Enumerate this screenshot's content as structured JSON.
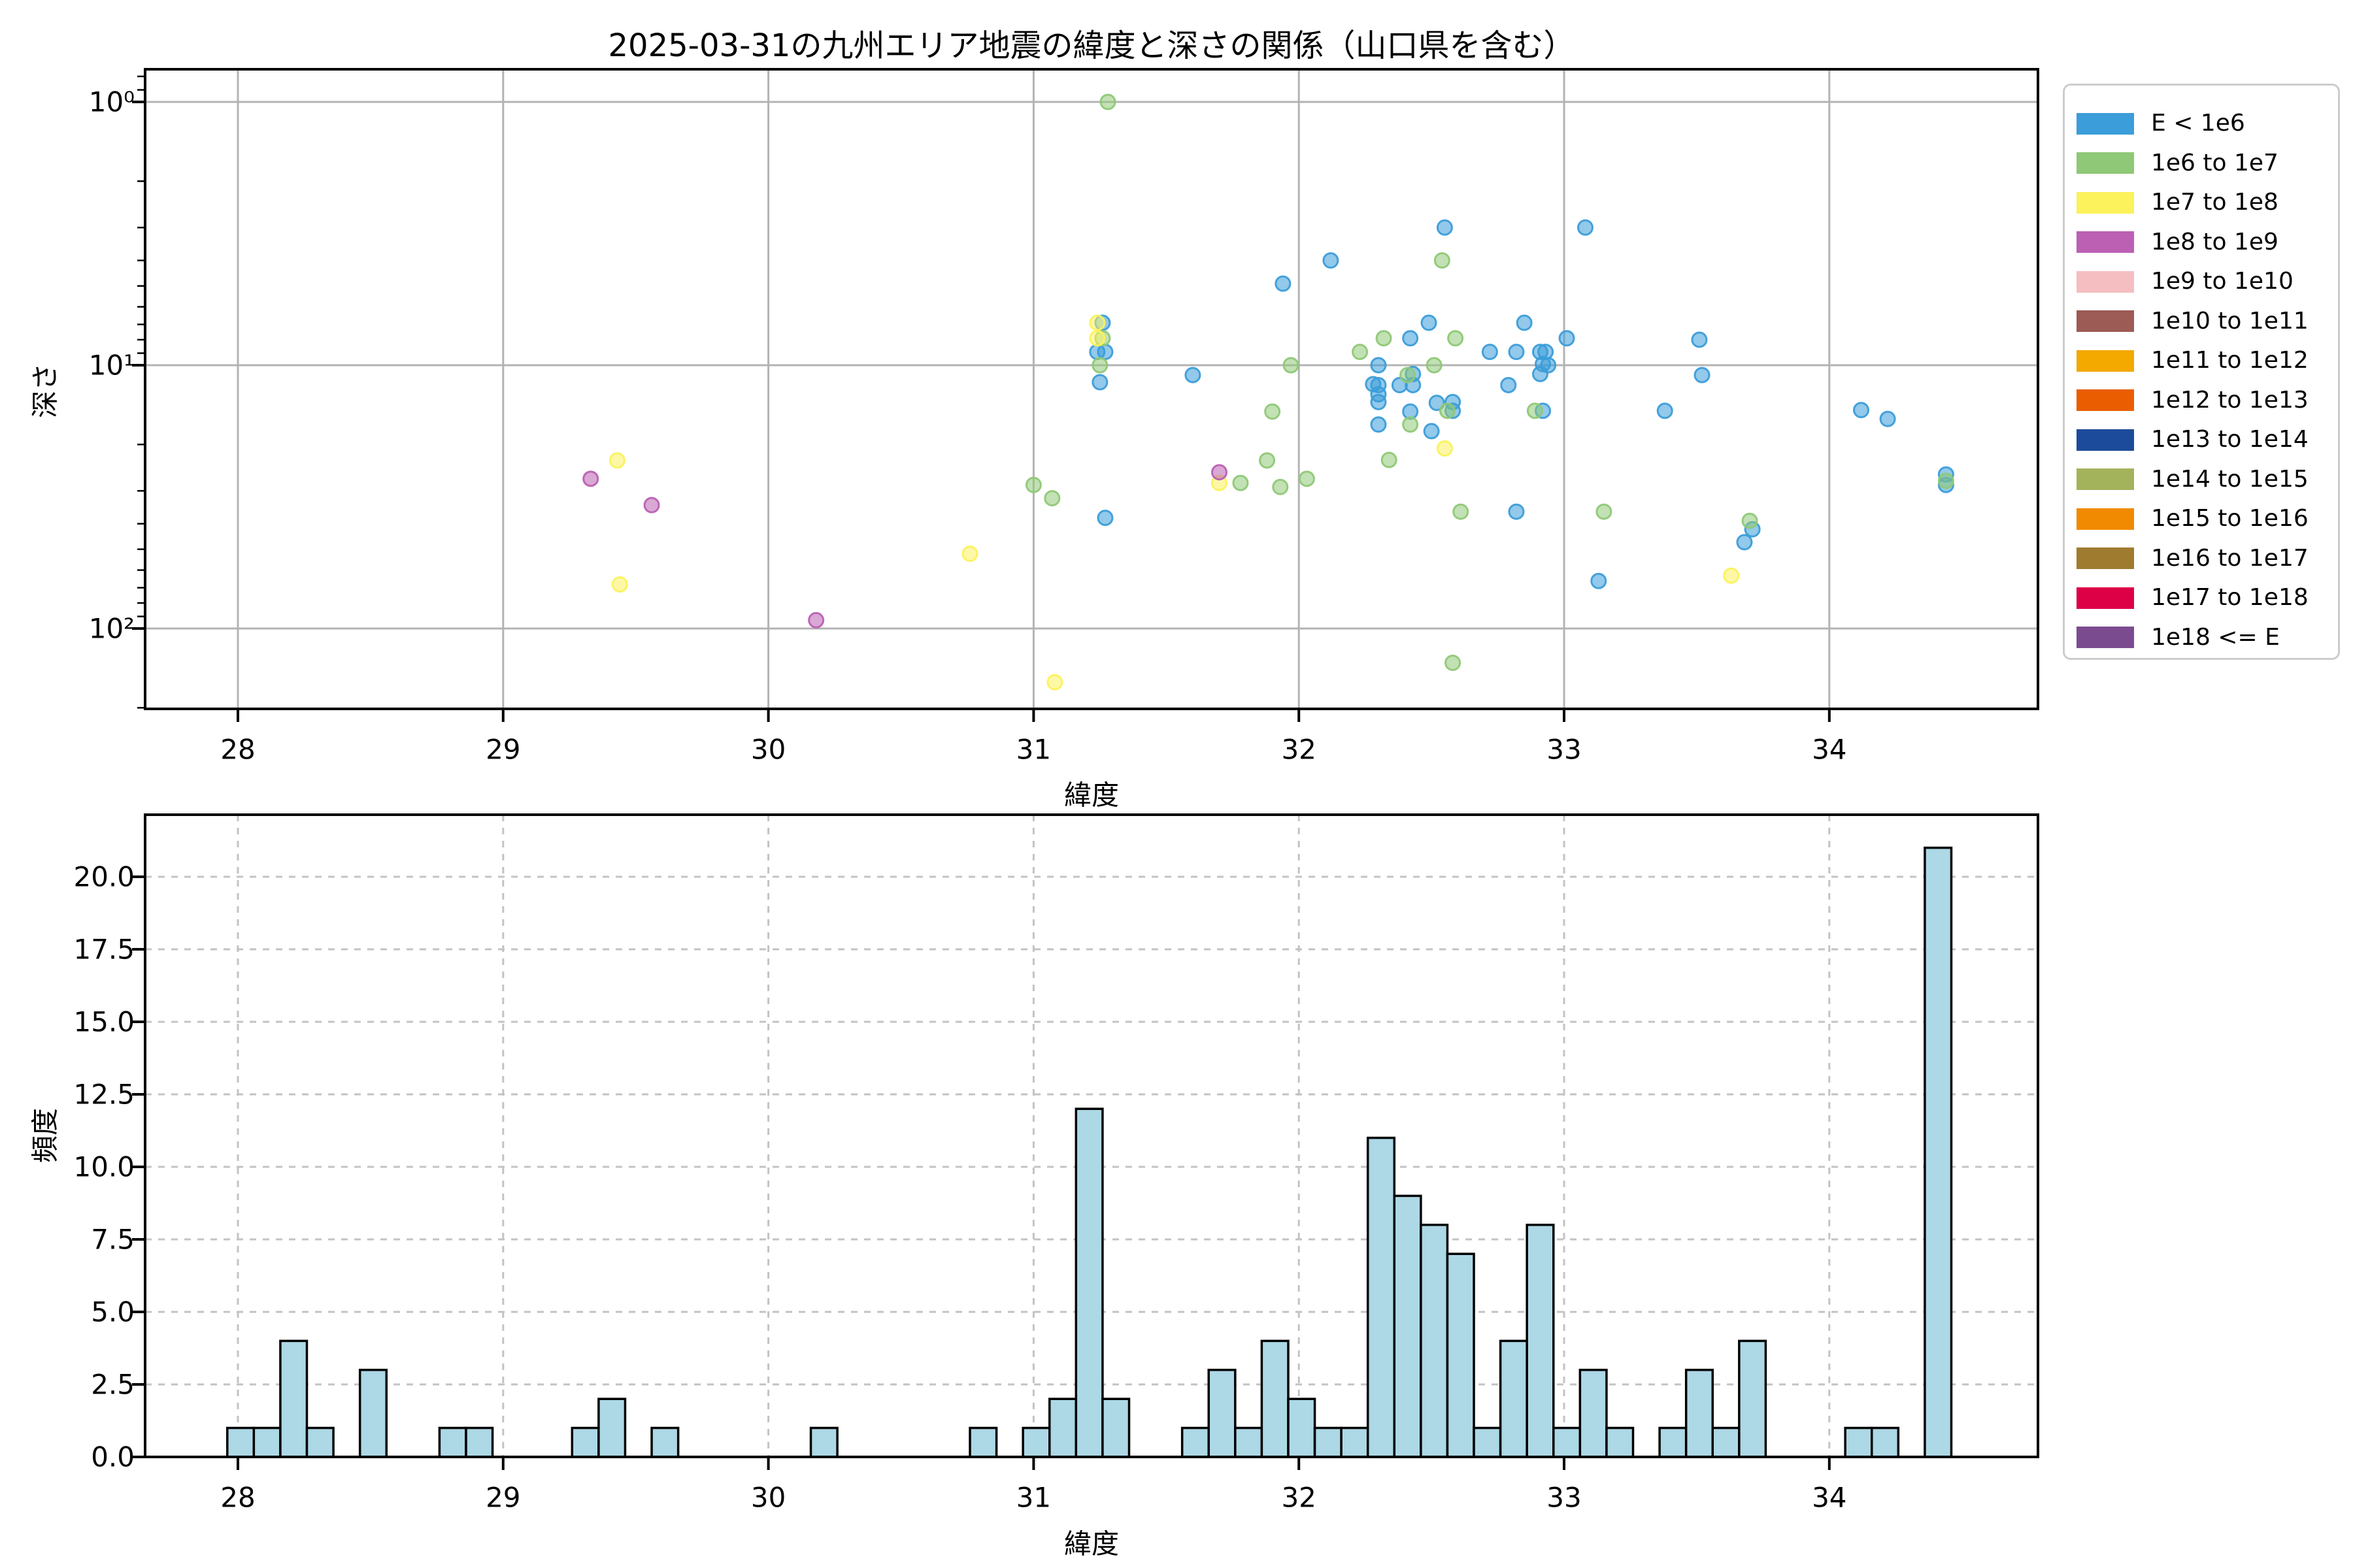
{
  "title": "2025-03-31の九州エリア地震の緯度と深さの関係（山口県を含む）",
  "chart_data": [
    {
      "type": "scatter",
      "panel": "top",
      "xlabel": "緯度",
      "ylabel": "深さ",
      "x_ticks": [
        28,
        29,
        30,
        31,
        32,
        33,
        34
      ],
      "y_ticks": [
        {
          "label": "10⁰",
          "value": 1
        },
        {
          "label": "10¹",
          "value": 10
        },
        {
          "label": "10²",
          "value": 100
        }
      ],
      "y_minor_ticks": [
        0.8,
        0.9,
        2,
        3,
        4,
        5,
        6,
        7,
        8,
        9,
        20,
        30,
        40,
        50,
        60,
        70,
        80,
        90,
        200
      ],
      "xlim": [
        27.65,
        34.79
      ],
      "depth_lim": [
        0.76,
        202
      ],
      "y_scale": "log (depth increases downward)",
      "grid": "solid",
      "marker_alpha": 0.6,
      "legend_position": "outside-right",
      "legend": [
        {
          "label": "E < 1e6",
          "color": "#3B9DD9"
        },
        {
          "label": "1e6 to 1e7",
          "color": "#8FC877"
        },
        {
          "label": "1e7 to 1e8",
          "color": "#FBF25C"
        },
        {
          "label": "1e8 to 1e9",
          "color": "#BB60B3"
        },
        {
          "label": "1e9 to 1e10",
          "color": "#F5BEC0"
        },
        {
          "label": "1e10 to 1e11",
          "color": "#9C5B54"
        },
        {
          "label": "1e11 to 1e12",
          "color": "#F3A900"
        },
        {
          "label": "1e12 to 1e13",
          "color": "#EA5D00"
        },
        {
          "label": "1e13 to 1e14",
          "color": "#1D4B9B"
        },
        {
          "label": "1e14 to 1e15",
          "color": "#A3B35B"
        },
        {
          "label": "1e15 to 1e16",
          "color": "#F18A00"
        },
        {
          "label": "1e16 to 1e17",
          "color": "#9F7B2F"
        },
        {
          "label": "1e17 to 1e18",
          "color": "#DD0047"
        },
        {
          "label": "1e18 <= E",
          "color": "#7B4B8F"
        }
      ],
      "series": [
        {
          "name": "E < 1e6",
          "points": [
            [
              31.26,
              6.9
            ],
            [
              31.24,
              8.9
            ],
            [
              31.27,
              8.9
            ],
            [
              31.25,
              11.6
            ],
            [
              31.27,
              38
            ],
            [
              31.6,
              10.9
            ],
            [
              31.94,
              4.9
            ],
            [
              32.12,
              4.0
            ],
            [
              32.55,
              3.0
            ],
            [
              32.49,
              6.9
            ],
            [
              32.42,
              7.9
            ],
            [
              32.85,
              6.9
            ],
            [
              32.3,
              10.0
            ],
            [
              32.28,
              11.8
            ],
            [
              32.3,
              11.9
            ],
            [
              32.38,
              11.9
            ],
            [
              32.43,
              11.9
            ],
            [
              32.43,
              10.8
            ],
            [
              32.3,
              12.9
            ],
            [
              32.3,
              13.8
            ],
            [
              32.52,
              13.9
            ],
            [
              32.58,
              13.8
            ],
            [
              32.58,
              14.9
            ],
            [
              32.42,
              15.0
            ],
            [
              32.3,
              16.8
            ],
            [
              32.5,
              17.8
            ],
            [
              32.72,
              8.9
            ],
            [
              32.79,
              11.9
            ],
            [
              32.82,
              8.9
            ],
            [
              32.82,
              36
            ],
            [
              32.91,
              8.9
            ],
            [
              32.93,
              8.9
            ],
            [
              32.91,
              10.8
            ],
            [
              32.92,
              9.9
            ],
            [
              32.94,
              10.0
            ],
            [
              32.92,
              14.9
            ],
            [
              33.01,
              7.9
            ],
            [
              33.08,
              3.0
            ],
            [
              33.13,
              66
            ],
            [
              33.38,
              14.9
            ],
            [
              33.51,
              8.0
            ],
            [
              33.52,
              10.9
            ],
            [
              33.71,
              42
            ],
            [
              33.68,
              47
            ],
            [
              34.12,
              14.8
            ],
            [
              34.22,
              16
            ],
            [
              34.44,
              26
            ],
            [
              34.44,
              28.5
            ]
          ]
        },
        {
          "name": "1e6 to 1e7",
          "points": [
            [
              31.28,
              1.0
            ],
            [
              31.0,
              28.5
            ],
            [
              31.07,
              32
            ],
            [
              31.26,
              7.9
            ],
            [
              31.25,
              10.0
            ],
            [
              31.78,
              28
            ],
            [
              31.88,
              23
            ],
            [
              31.9,
              15
            ],
            [
              31.93,
              29
            ],
            [
              31.97,
              10
            ],
            [
              32.03,
              27
            ],
            [
              32.23,
              8.9
            ],
            [
              32.32,
              7.9
            ],
            [
              32.59,
              7.9
            ],
            [
              32.51,
              10.0
            ],
            [
              32.41,
              10.9
            ],
            [
              32.56,
              14.9
            ],
            [
              32.42,
              16.8
            ],
            [
              32.34,
              22.9
            ],
            [
              32.54,
              4.0
            ],
            [
              32.61,
              36
            ],
            [
              32.58,
              135
            ],
            [
              32.89,
              14.9
            ],
            [
              33.15,
              36
            ],
            [
              33.7,
              39
            ],
            [
              34.44,
              27.5
            ]
          ]
        },
        {
          "name": "1e7 to 1e8",
          "points": [
            [
              29.43,
              23
            ],
            [
              29.44,
              68
            ],
            [
              30.76,
              52
            ],
            [
              31.08,
              160
            ],
            [
              31.24,
              6.9
            ],
            [
              31.24,
              7.9
            ],
            [
              31.7,
              28
            ],
            [
              32.55,
              20.7
            ],
            [
              33.63,
              63
            ]
          ]
        },
        {
          "name": "1e8 to 1e9",
          "points": [
            [
              29.33,
              27
            ],
            [
              29.56,
              34
            ],
            [
              30.18,
              93
            ],
            [
              31.7,
              25.5
            ]
          ]
        },
        {
          "name": "1e9 to 1e10",
          "points": []
        },
        {
          "name": "1e10 to 1e11",
          "points": []
        },
        {
          "name": "1e11 to 1e12",
          "points": []
        },
        {
          "name": "1e12 to 1e13",
          "points": []
        },
        {
          "name": "1e13 to 1e14",
          "points": []
        },
        {
          "name": "1e14 to 1e15",
          "points": []
        },
        {
          "name": "1e15 to 1e16",
          "points": []
        },
        {
          "name": "1e16 to 1e17",
          "points": []
        },
        {
          "name": "1e17 to 1e18",
          "points": []
        },
        {
          "name": "1e18 <= E",
          "points": []
        }
      ]
    },
    {
      "type": "bar",
      "panel": "bottom",
      "xlabel": "緯度",
      "ylabel": "頻度",
      "x_ticks": [
        28,
        29,
        30,
        31,
        32,
        33,
        34
      ],
      "y_ticks": [
        "0.0",
        "2.5",
        "5.0",
        "7.5",
        "10.0",
        "12.5",
        "15.0",
        "17.5",
        "20.0"
      ],
      "ylim": [
        0,
        22
      ],
      "grid": "dashed",
      "bar_color": "#ADD8E6",
      "bar_edge_color": "#000000",
      "bin_width": 0.1,
      "bars": [
        [
          27.96,
          1
        ],
        [
          28.06,
          1
        ],
        [
          28.16,
          4
        ],
        [
          28.26,
          1
        ],
        [
          28.46,
          3
        ],
        [
          28.76,
          1
        ],
        [
          28.86,
          1
        ],
        [
          29.26,
          1
        ],
        [
          29.36,
          2
        ],
        [
          29.56,
          1
        ],
        [
          30.16,
          1
        ],
        [
          30.76,
          1
        ],
        [
          30.96,
          1
        ],
        [
          31.06,
          2
        ],
        [
          31.16,
          12
        ],
        [
          31.26,
          2
        ],
        [
          31.56,
          1
        ],
        [
          31.66,
          3
        ],
        [
          31.76,
          1
        ],
        [
          31.86,
          4
        ],
        [
          31.96,
          2
        ],
        [
          32.06,
          1
        ],
        [
          32.16,
          1
        ],
        [
          32.26,
          11
        ],
        [
          32.36,
          9
        ],
        [
          32.46,
          8
        ],
        [
          32.56,
          7
        ],
        [
          32.66,
          1
        ],
        [
          32.76,
          4
        ],
        [
          32.86,
          8
        ],
        [
          32.96,
          1
        ],
        [
          33.06,
          3
        ],
        [
          33.16,
          1
        ],
        [
          33.36,
          1
        ],
        [
          33.46,
          3
        ],
        [
          33.56,
          1
        ],
        [
          33.66,
          4
        ],
        [
          34.06,
          1
        ],
        [
          34.16,
          1
        ],
        [
          34.36,
          21
        ]
      ]
    }
  ]
}
